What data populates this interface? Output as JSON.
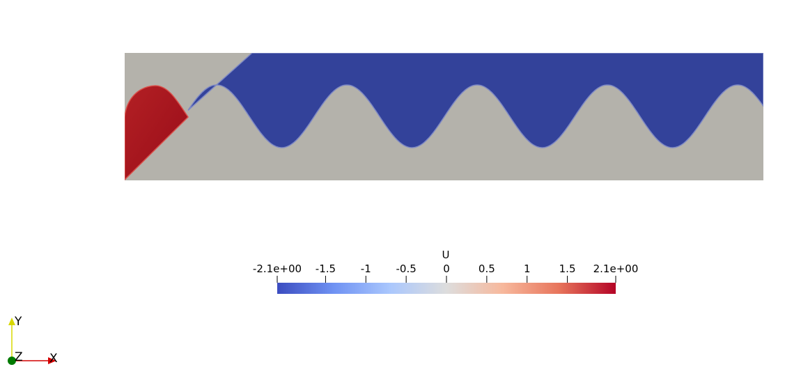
{
  "scalar_bar": {
    "title": "U",
    "tick_labels": [
      "-2.1e+00",
      "-1.5",
      "-1",
      "-0.5",
      "0",
      "0.5",
      "1",
      "1.5",
      "2.1e+00"
    ],
    "tick_values": [
      -2.1,
      -1.5,
      -1,
      -0.5,
      0,
      0.5,
      1,
      1.5,
      2.1
    ],
    "range": [
      -2.1,
      2.1
    ],
    "colormap": [
      "#3b4cc0",
      "#6f92f3",
      "#aac7fd",
      "#dddddd",
      "#f7b89c",
      "#e7745b",
      "#b40426"
    ]
  },
  "field": {
    "background_color": "#b4b2ab",
    "negative_color": "#33429a",
    "positive_color": "#a3141d"
  },
  "axes": {
    "x_label": "X",
    "y_label": "Y",
    "z_label": "Z",
    "x_color": "#d40000",
    "y_color": "#d8d800",
    "z_color": "#007a00"
  }
}
